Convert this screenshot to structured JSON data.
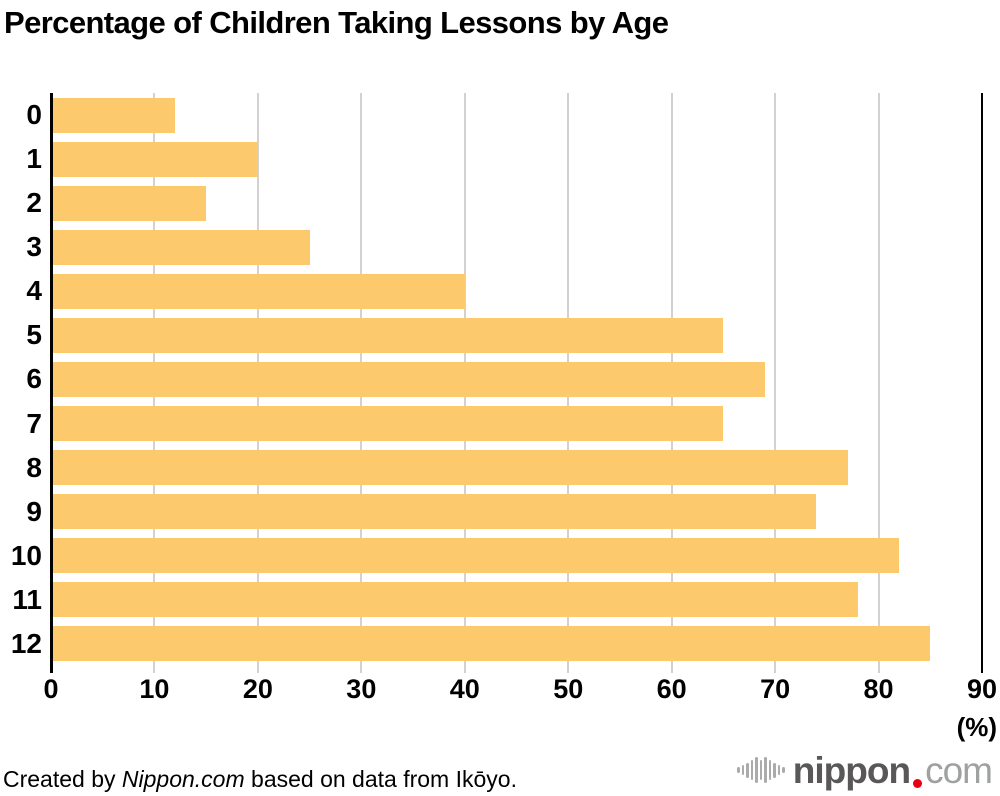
{
  "title": "Percentage of Children Taking Lessons by Age",
  "chart_data": {
    "type": "bar",
    "orientation": "horizontal",
    "title": "Percentage of Children Taking Lessons by Age",
    "categories": [
      "0",
      "1",
      "2",
      "3",
      "4",
      "5",
      "6",
      "7",
      "8",
      "9",
      "10",
      "11",
      "12"
    ],
    "values": [
      12,
      20,
      15,
      25,
      40,
      65,
      69,
      65,
      77,
      74,
      82,
      78,
      85
    ],
    "xlabel": "(%)",
    "ylabel": "",
    "xlim": [
      0,
      90
    ],
    "xticks": [
      0,
      10,
      20,
      30,
      40,
      50,
      60,
      70,
      80,
      90
    ],
    "grid": true,
    "legend": false,
    "bar_color": "#FCC96D",
    "gridline_color": "#D2D2D2",
    "axis_color": "#000000"
  },
  "footer": {
    "credit_prefix": "Created by ",
    "credit_source": "Nippon.com",
    "credit_suffix": " based on data from Ikōyo."
  },
  "logo": {
    "icon": "waveform-icon",
    "name": "nippon",
    "tld": "com",
    "name_color": "#595757",
    "tld_color": "#9FA0A0",
    "dot_color": "#E60012",
    "icon_bar_heights": [
      6,
      10,
      15,
      20,
      26,
      20,
      26,
      20,
      15,
      10,
      6
    ]
  }
}
